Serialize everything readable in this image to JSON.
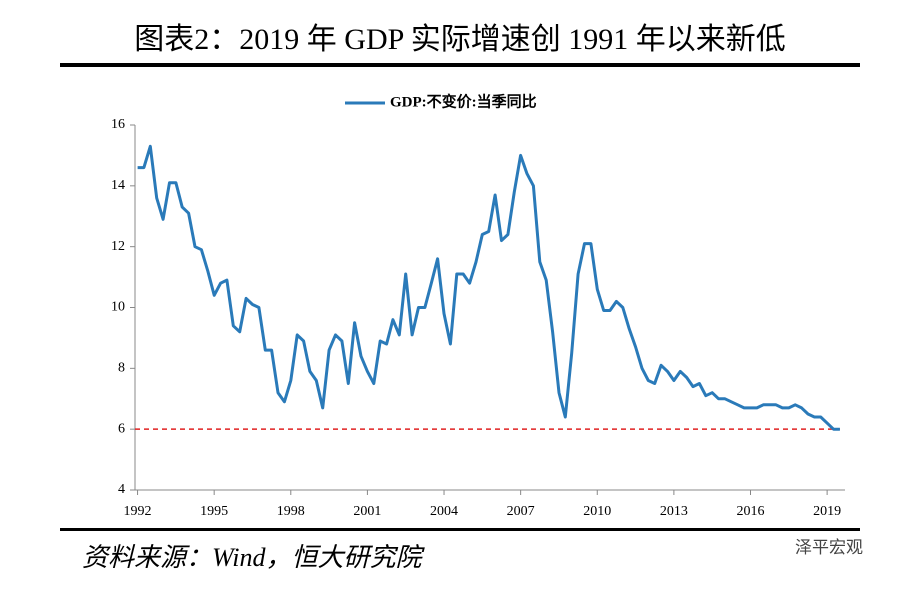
{
  "chart_data": {
    "type": "line",
    "title": "图表2：2019 年 GDP 实际增速创 1991 年以来新低",
    "source": "资料来源：Wind，恒大研究院",
    "watermark": "泽平宏观",
    "x": [
      1992,
      1992.25,
      1992.5,
      1992.75,
      1993,
      1993.25,
      1993.5,
      1993.75,
      1994,
      1994.25,
      1994.5,
      1994.75,
      1995,
      1995.25,
      1995.5,
      1995.75,
      1996,
      1996.25,
      1996.5,
      1996.75,
      1997,
      1997.25,
      1997.5,
      1997.75,
      1998,
      1998.25,
      1998.5,
      1998.75,
      1999,
      1999.25,
      1999.5,
      1999.75,
      2000,
      2000.25,
      2000.5,
      2000.75,
      2001,
      2001.25,
      2001.5,
      2001.75,
      2002,
      2002.25,
      2002.5,
      2002.75,
      2003,
      2003.25,
      2003.5,
      2003.75,
      2004,
      2004.25,
      2004.5,
      2004.75,
      2005,
      2005.25,
      2005.5,
      2005.75,
      2006,
      2006.25,
      2006.5,
      2006.75,
      2007,
      2007.25,
      2007.5,
      2007.75,
      2008,
      2008.25,
      2008.5,
      2008.75,
      2009,
      2009.25,
      2009.5,
      2009.75,
      2010,
      2010.25,
      2010.5,
      2010.75,
      2011,
      2011.25,
      2011.5,
      2011.75,
      2012,
      2012.25,
      2012.5,
      2012.75,
      2013,
      2013.25,
      2013.5,
      2013.75,
      2014,
      2014.25,
      2014.5,
      2014.75,
      2015,
      2015.25,
      2015.5,
      2015.75,
      2016,
      2016.25,
      2016.5,
      2016.75,
      2017,
      2017.25,
      2017.5,
      2017.75,
      2018,
      2018.25,
      2018.5,
      2018.75,
      2019,
      2019.25,
      2019.5
    ],
    "series": [
      {
        "name": "GDP:不变价:当季同比",
        "color": "#2a7ab9",
        "values": [
          14.6,
          14.6,
          15.3,
          13.6,
          12.9,
          14.1,
          14.1,
          13.3,
          13.1,
          12.0,
          11.9,
          11.2,
          10.4,
          10.8,
          10.9,
          9.4,
          9.2,
          10.3,
          10.1,
          10.0,
          8.6,
          8.6,
          7.2,
          6.9,
          7.6,
          9.1,
          8.9,
          7.9,
          7.6,
          6.7,
          8.6,
          9.1,
          8.9,
          7.5,
          9.5,
          8.4,
          7.9,
          7.5,
          8.9,
          8.8,
          9.6,
          9.1,
          11.1,
          9.1,
          10.0,
          10.0,
          10.8,
          11.6,
          9.8,
          8.8,
          11.1,
          11.1,
          10.8,
          11.5,
          12.4,
          12.5,
          13.7,
          12.2,
          12.4,
          13.8,
          15.0,
          14.4,
          14.0,
          11.5,
          10.9,
          9.2,
          7.2,
          6.4,
          8.5,
          11.1,
          12.1,
          12.1,
          10.6,
          9.9,
          9.9,
          10.2,
          10.0,
          9.3,
          8.7,
          8.0,
          7.6,
          7.5,
          8.1,
          7.9,
          7.6,
          7.9,
          7.7,
          7.4,
          7.5,
          7.1,
          7.2,
          7.0,
          7.0,
          6.9,
          6.8,
          6.7,
          6.7,
          6.7,
          6.8,
          6.8,
          6.8,
          6.7,
          6.7,
          6.8,
          6.7,
          6.5,
          6.4,
          6.4,
          6.2,
          6.0,
          6.0
        ]
      }
    ],
    "xlim": [
      1991.9,
      2019.7
    ],
    "xticks": [
      1992,
      1995,
      1998,
      2001,
      2004,
      2007,
      2010,
      2013,
      2016,
      2019
    ],
    "ylim": [
      4,
      16
    ],
    "yticks": [
      4,
      6,
      8,
      10,
      12,
      14,
      16
    ],
    "reference_line": 6,
    "reference_color": "#e02020",
    "legend": "top"
  }
}
